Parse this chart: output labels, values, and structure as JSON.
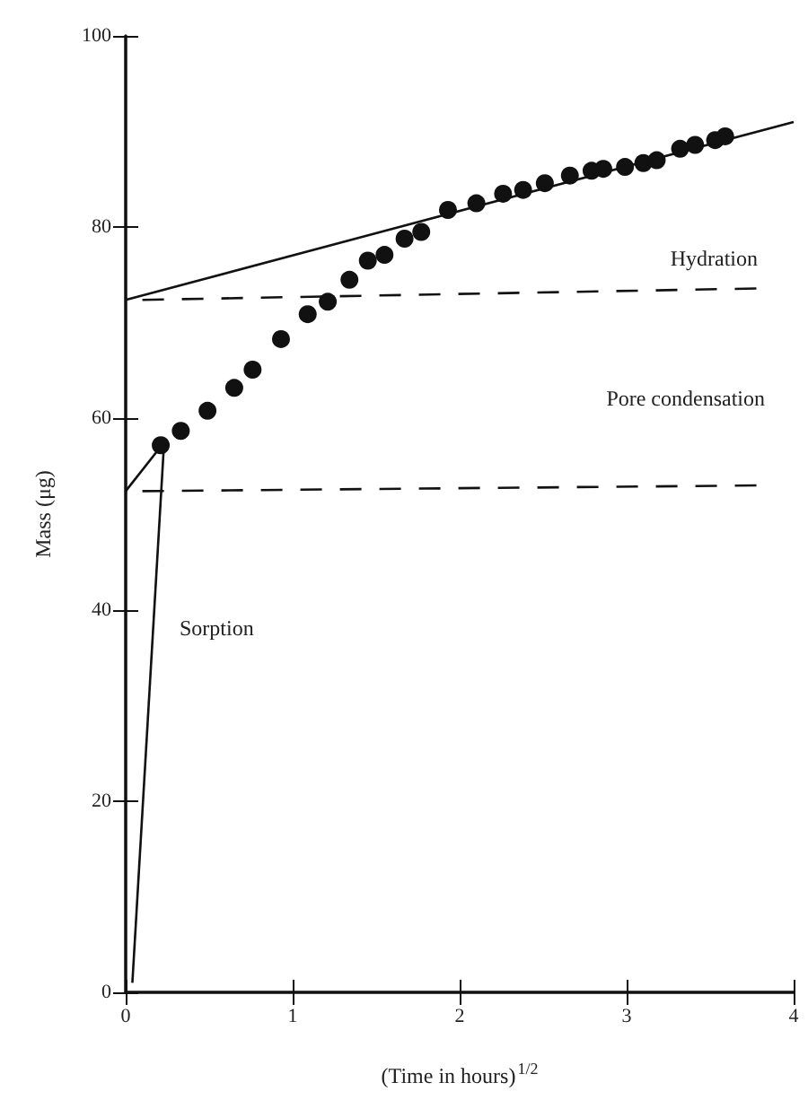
{
  "chart_data": {
    "type": "scatter",
    "xlabel": "(Time in hours)$^{1/2}$",
    "ylabel": "Mass (μg)",
    "xlim": [
      0,
      4
    ],
    "xticks": [
      0,
      1,
      2,
      3,
      4
    ],
    "ylim": [
      0,
      100
    ],
    "yticks": [
      0,
      20,
      40,
      60,
      80,
      100
    ],
    "grid": false,
    "marker": "circle",
    "series": [
      {
        "color": "#111111",
        "x": [
          0.21,
          0.33,
          0.49,
          0.65,
          0.76,
          0.93,
          1.09,
          1.21,
          1.34,
          1.45,
          1.55,
          1.67,
          1.77,
          1.93,
          2.1,
          2.26,
          2.38,
          2.51,
          2.66,
          2.79,
          2.86,
          2.99,
          3.1,
          3.18,
          3.32,
          3.41,
          3.53,
          3.59
        ],
        "values": [
          57.2,
          58.7,
          60.8,
          63.2,
          65.1,
          68.3,
          70.9,
          72.2,
          74.5,
          76.5,
          77.1,
          78.8,
          79.5,
          81.8,
          82.5,
          83.5,
          83.9,
          84.6,
          85.4,
          85.9,
          86.1,
          86.3,
          86.7,
          87,
          88.2,
          88.6,
          89.1,
          89.5
        ]
      },
      {
        "type": "line",
        "color": "#111111",
        "marker": "none",
        "line_style": "solid",
        "x": [
          0.04,
          0.23
        ],
        "values": [
          1,
          57.5
        ]
      },
      {
        "type": "line",
        "color": "#111111",
        "marker": "none",
        "line_style": "solid",
        "x": [
          0,
          0.23
        ],
        "values": [
          52.4,
          57.5
        ]
      },
      {
        "type": "line",
        "color": "#111111",
        "marker": "none",
        "line_style": "solid",
        "x": [
          0,
          4
        ],
        "values": [
          72.4,
          91
        ]
      },
      {
        "type": "line",
        "color": "#111111",
        "marker": "none",
        "line_style": "dashed",
        "x": [
          0.1,
          3.8
        ],
        "values": [
          72.4,
          73.6
        ]
      },
      {
        "type": "line",
        "color": "#111111",
        "marker": "none",
        "line_style": "dashed",
        "x": [
          0.1,
          3.8
        ],
        "values": [
          52.4,
          53
        ]
      }
    ],
    "annotations": [
      "Hydration",
      "Pore condensation",
      "Sorption"
    ]
  }
}
